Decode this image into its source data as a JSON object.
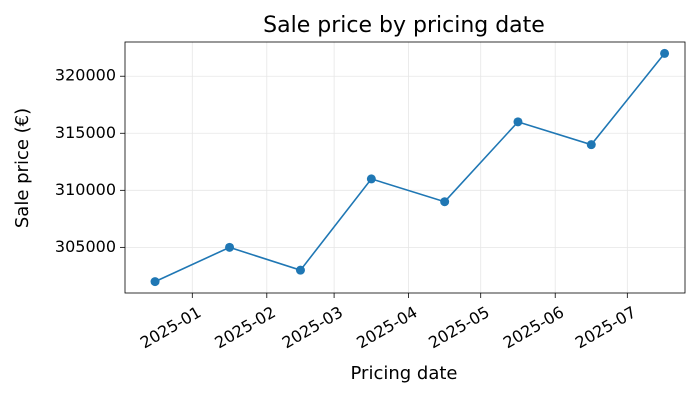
{
  "chart_data": {
    "type": "line",
    "title": "Sale price by pricing date",
    "x_label": "Pricing date",
    "y_label": "Sale price (€)",
    "x": [
      "2024-12",
      "2025-01",
      "2025-02",
      "2025-03",
      "2025-04",
      "2025-05",
      "2025-06",
      "2025-07"
    ],
    "series": [
      {
        "name": "Sale price",
        "color": "#1f77b4",
        "values": [
          302000,
          305000,
          303000,
          311000,
          309000,
          316000,
          314000,
          322000
        ]
      }
    ],
    "xlim": [
      "2024-12-04",
      "2025-07-25"
    ],
    "xticks": [
      "2025-01",
      "2025-02",
      "2025-03",
      "2025-04",
      "2025-05",
      "2025-06",
      "2025-07"
    ],
    "ylim": [
      301000,
      323000
    ],
    "yticks": [
      305000,
      310000,
      315000,
      320000
    ],
    "grid": true,
    "markers": true
  }
}
